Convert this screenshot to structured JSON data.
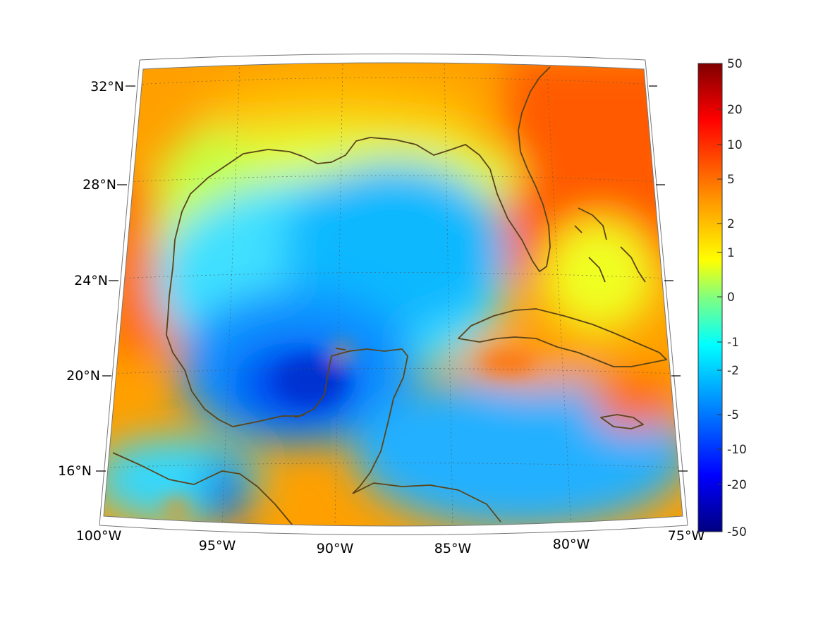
{
  "map": {
    "region": "Gulf of Mexico",
    "projection": "conic",
    "lon_range": [
      -100,
      -75
    ],
    "lat_range": [
      14,
      33
    ],
    "longitude_labels": [
      "100°W",
      "95°W",
      "90°W",
      "85°W",
      "80°W",
      "75°W"
    ],
    "latitude_labels": [
      "16°N",
      "20°N",
      "24°N",
      "28°N",
      "32°N"
    ],
    "grid": true,
    "coastline_color": "#5a4418"
  },
  "colorbar": {
    "colormap": "jet",
    "placement": "right",
    "tick_labels": [
      "50",
      "20",
      "10",
      "5",
      "2",
      "1",
      "0",
      "-1",
      "-2",
      "-5",
      "-10",
      "-20",
      "-50"
    ],
    "colors": [
      "#8b0000",
      "#ff0000",
      "#ff7f00",
      "#ffff00",
      "#7fff7f",
      "#00ffff",
      "#007fff",
      "#0000ff",
      "#00008b"
    ]
  }
}
